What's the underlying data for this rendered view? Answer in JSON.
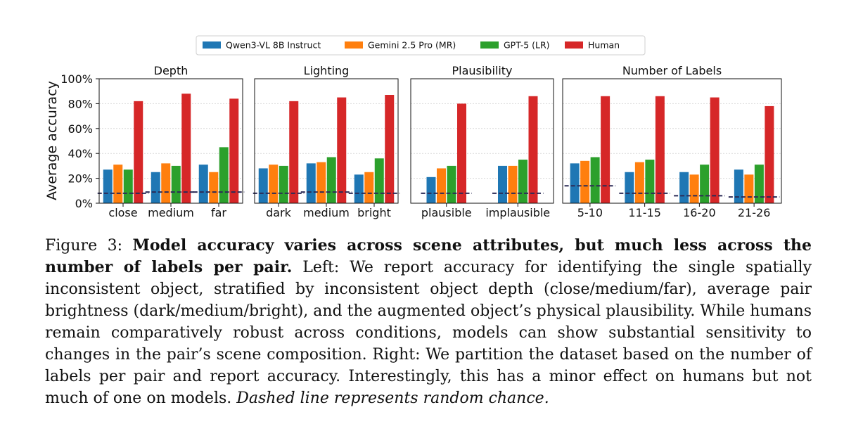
{
  "legend": [
    {
      "label": "Qwen3-VL 8B Instruct",
      "color": "#1f77b4"
    },
    {
      "label": "Gemini 2.5 Pro (MR)",
      "color": "#ff7f0e"
    },
    {
      "label": "GPT-5 (LR)",
      "color": "#2ca02c"
    },
    {
      "label": "Human",
      "color": "#d62728"
    }
  ],
  "chance_line_color": "#2b2b57",
  "y_axis": {
    "label": "Average accuracy",
    "ticks": [
      "0%",
      "20%",
      "40%",
      "60%",
      "80%",
      "100%"
    ]
  },
  "chart_data": [
    {
      "type": "bar",
      "title": "Depth",
      "categories": [
        "close",
        "medium",
        "far"
      ],
      "ylim": [
        0,
        100
      ],
      "grid": true,
      "series": [
        {
          "name": "Qwen3-VL 8B Instruct",
          "values": [
            27,
            25,
            31
          ]
        },
        {
          "name": "Gemini 2.5 Pro (MR)",
          "values": [
            31,
            32,
            25
          ]
        },
        {
          "name": "GPT-5 (LR)",
          "values": [
            27,
            30,
            45
          ]
        },
        {
          "name": "Human",
          "values": [
            82,
            88,
            84
          ]
        }
      ],
      "chance": [
        8,
        9,
        9
      ]
    },
    {
      "type": "bar",
      "title": "Lighting",
      "categories": [
        "dark",
        "medium",
        "bright"
      ],
      "ylim": [
        0,
        100
      ],
      "grid": true,
      "series": [
        {
          "name": "Qwen3-VL 8B Instruct",
          "values": [
            28,
            32,
            23
          ]
        },
        {
          "name": "Gemini 2.5 Pro (MR)",
          "values": [
            31,
            33,
            25
          ]
        },
        {
          "name": "GPT-5 (LR)",
          "values": [
            30,
            37,
            36
          ]
        },
        {
          "name": "Human",
          "values": [
            82,
            85,
            87
          ]
        }
      ],
      "chance": [
        8,
        9,
        8
      ]
    },
    {
      "type": "bar",
      "title": "Plausibility",
      "categories": [
        "plausible",
        "implausible"
      ],
      "ylim": [
        0,
        100
      ],
      "grid": true,
      "series": [
        {
          "name": "Qwen3-VL 8B Instruct",
          "values": [
            21,
            30
          ]
        },
        {
          "name": "Gemini 2.5 Pro (MR)",
          "values": [
            28,
            30
          ]
        },
        {
          "name": "GPT-5 (LR)",
          "values": [
            30,
            35
          ]
        },
        {
          "name": "Human",
          "values": [
            80,
            86
          ]
        }
      ],
      "chance": [
        8,
        8
      ]
    },
    {
      "type": "bar",
      "title": "Number of Labels",
      "categories": [
        "5-10",
        "11-15",
        "16-20",
        "21-26"
      ],
      "ylim": [
        0,
        100
      ],
      "grid": true,
      "series": [
        {
          "name": "Qwen3-VL 8B Instruct",
          "values": [
            32,
            25,
            25,
            27
          ]
        },
        {
          "name": "Gemini 2.5 Pro (MR)",
          "values": [
            34,
            33,
            23,
            23
          ]
        },
        {
          "name": "GPT-5 (LR)",
          "values": [
            37,
            35,
            31,
            31
          ]
        },
        {
          "name": "Human",
          "values": [
            86,
            86,
            85,
            78
          ]
        }
      ],
      "chance": [
        14,
        8,
        6,
        5
      ]
    }
  ],
  "caption": {
    "figure_label": "Figure 3:",
    "bold": "Model accuracy varies across scene attributes, but much less across the number of labels per pair.",
    "body": "Left: We report accuracy for identifying the single spatially inconsistent object, stratified by inconsistent object depth (close/medium/far), average pair brightness (dark/medium/bright), and the augmented object’s physical plausibility. While humans remain comparatively robust across conditions, models can show substantial sensitivity to changes in the pair’s scene composition. Right: We partition the dataset based on the number of labels per pair and report accuracy. Interestingly, this has a minor effect on humans but not much of one on models.",
    "italic": "Dashed line represents random chance."
  }
}
